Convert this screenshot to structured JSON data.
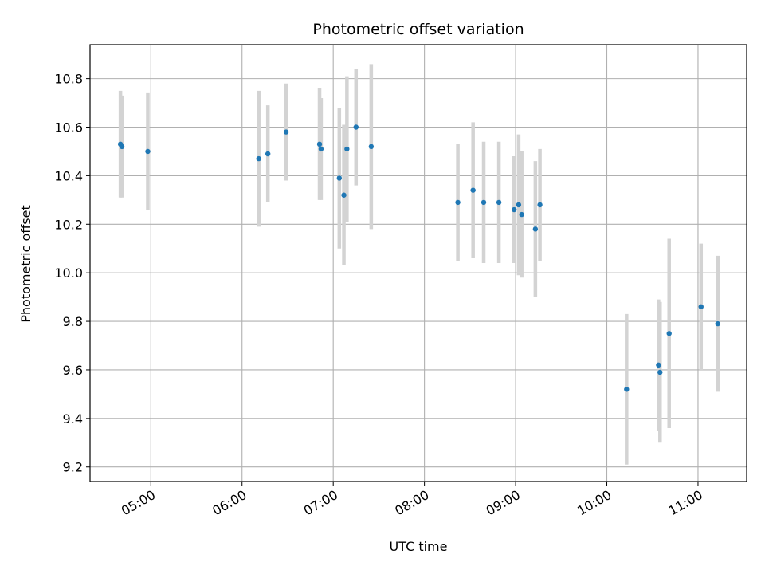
{
  "chart_data": {
    "type": "scatter",
    "title": "Photometric offset variation",
    "xlabel": "UTC time",
    "ylabel": "Photometric offset",
    "grid": true,
    "xlim": [
      "04:20",
      "11:32"
    ],
    "ylim": [
      9.14,
      10.94
    ],
    "xticks": [
      "05:00",
      "06:00",
      "07:00",
      "08:00",
      "09:00",
      "10:00",
      "11:00"
    ],
    "yticks": [
      9.2,
      9.4,
      9.6,
      9.8,
      10.0,
      10.2,
      10.4,
      10.6,
      10.8
    ],
    "ytick_labels": [
      "9.2",
      "9.4",
      "9.6",
      "9.8",
      "10.0",
      "10.2",
      "10.4",
      "10.6",
      "10.8"
    ],
    "point_color": "#1f77b4",
    "errorbar_color": "#d3d3d3",
    "points": [
      {
        "x": "04:40",
        "y": 10.53,
        "yerr": 0.22
      },
      {
        "x": "04:41",
        "y": 10.52,
        "yerr": 0.21
      },
      {
        "x": "04:58",
        "y": 10.5,
        "yerr": 0.24
      },
      {
        "x": "06:11",
        "y": 10.47,
        "yerr": 0.28
      },
      {
        "x": "06:17",
        "y": 10.49,
        "yerr": 0.2
      },
      {
        "x": "06:29",
        "y": 10.58,
        "yerr": 0.2
      },
      {
        "x": "06:51",
        "y": 10.53,
        "yerr": 0.23
      },
      {
        "x": "06:52",
        "y": 10.51,
        "yerr": 0.21
      },
      {
        "x": "07:04",
        "y": 10.39,
        "yerr": 0.29
      },
      {
        "x": "07:07",
        "y": 10.32,
        "yerr": 0.29
      },
      {
        "x": "07:09",
        "y": 10.51,
        "yerr": 0.3
      },
      {
        "x": "07:15",
        "y": 10.6,
        "yerr": 0.24
      },
      {
        "x": "07:25",
        "y": 10.52,
        "yerr": 0.34
      },
      {
        "x": "08:22",
        "y": 10.29,
        "yerr": 0.24
      },
      {
        "x": "08:32",
        "y": 10.34,
        "yerr": 0.28
      },
      {
        "x": "08:39",
        "y": 10.29,
        "yerr": 0.25
      },
      {
        "x": "08:49",
        "y": 10.29,
        "yerr": 0.25
      },
      {
        "x": "08:59",
        "y": 10.26,
        "yerr": 0.22
      },
      {
        "x": "09:02",
        "y": 10.28,
        "yerr": 0.29
      },
      {
        "x": "09:04",
        "y": 10.24,
        "yerr": 0.26
      },
      {
        "x": "09:13",
        "y": 10.18,
        "yerr": 0.28
      },
      {
        "x": "09:16",
        "y": 10.28,
        "yerr": 0.23
      },
      {
        "x": "10:13",
        "y": 9.52,
        "yerr": 0.31
      },
      {
        "x": "10:34",
        "y": 9.62,
        "yerr": 0.27
      },
      {
        "x": "10:35",
        "y": 9.59,
        "yerr": 0.29
      },
      {
        "x": "10:41",
        "y": 9.75,
        "yerr": 0.39
      },
      {
        "x": "11:02",
        "y": 9.86,
        "yerr": 0.26
      },
      {
        "x": "11:13",
        "y": 9.79,
        "yerr": 0.28
      }
    ]
  }
}
